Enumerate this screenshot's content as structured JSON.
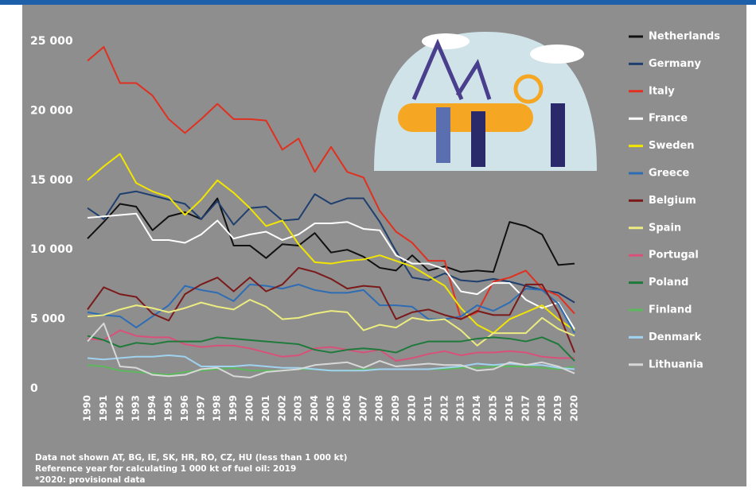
{
  "chart_data": {
    "type": "line",
    "categories": [
      "1990",
      "1991",
      "1992",
      "1993",
      "1994",
      "1995",
      "1996",
      "1997",
      "1998",
      "1999",
      "2000",
      "2001",
      "2002",
      "2003",
      "2004",
      "2005",
      "2006",
      "2007",
      "2008",
      "2009",
      "2010",
      "2011",
      "2012",
      "2013",
      "2014",
      "2015",
      "2016",
      "2017",
      "2018",
      "2019",
      "2020"
    ],
    "ylim": [
      0,
      25000
    ],
    "yticks": [
      0,
      {
        "value": 5000,
        "label": "5 000"
      },
      {
        "value": 10000,
        "label": "10 000"
      },
      {
        "value": 15000,
        "label": "15 000"
      },
      {
        "value": 20000,
        "label": "20 000"
      },
      {
        "value": 25000,
        "label": "25 000"
      }
    ],
    "legend": "right",
    "notes": [
      "Data not shown AT, BG, IE, SK, HR, RO, CZ, HU (less than 1 000 kt)",
      "Reference year for calculating 1 000 kt of fuel oil: 2019",
      "*2020: provisional data"
    ],
    "series": [
      {
        "name": "Netherlands",
        "color": "#111111",
        "values": [
          10800,
          12000,
          13300,
          13100,
          11400,
          12400,
          12700,
          12200,
          13700,
          10300,
          10300,
          9400,
          10400,
          10300,
          11200,
          9800,
          10000,
          9500,
          8700,
          8500,
          9600,
          8500,
          8800,
          8400,
          8500,
          8400,
          12000,
          11700,
          11100,
          8900,
          9000
        ]
      },
      {
        "name": "Germany",
        "color": "#1f3f6e",
        "values": [
          13000,
          12200,
          14000,
          14200,
          13900,
          13600,
          13300,
          12200,
          13500,
          11800,
          13000,
          13100,
          12100,
          12200,
          14000,
          13300,
          13700,
          13700,
          12000,
          9900,
          8000,
          7800,
          8300,
          7800,
          7700,
          7900,
          7700,
          7400,
          7100,
          6900,
          6200
        ]
      },
      {
        "name": "Italy",
        "color": "#e03020",
        "values": [
          23600,
          24600,
          22000,
          22000,
          21100,
          19400,
          18400,
          19400,
          20500,
          19400,
          19400,
          19300,
          17200,
          18000,
          15600,
          17400,
          15600,
          15200,
          12800,
          11300,
          10500,
          9200,
          9200,
          5000,
          5500,
          7700,
          8000,
          8500,
          7200,
          6700,
          5400
        ]
      },
      {
        "name": "France",
        "color": "#ffffff",
        "values": [
          12300,
          12400,
          12500,
          12600,
          10700,
          10700,
          10500,
          11100,
          12100,
          10800,
          11100,
          11300,
          10700,
          11100,
          11900,
          11900,
          12000,
          11500,
          11400,
          9600,
          9000,
          9000,
          8600,
          7000,
          6800,
          7600,
          7600,
          6400,
          5800,
          6200,
          4300
        ]
      },
      {
        "name": "Sweden",
        "color": "#f2e500",
        "values": [
          15000,
          16000,
          16900,
          14800,
          14200,
          13800,
          12500,
          13600,
          15000,
          14100,
          13000,
          11700,
          12100,
          10400,
          9100,
          9000,
          9200,
          9300,
          9600,
          9200,
          8800,
          8100,
          7400,
          5800,
          4600,
          4000,
          5000,
          5500,
          6000,
          5000,
          4200
        ]
      },
      {
        "name": "Greece",
        "color": "#2e6db4",
        "values": [
          5500,
          5300,
          5200,
          4400,
          5200,
          6000,
          7400,
          7100,
          6900,
          6300,
          7500,
          7400,
          7200,
          7500,
          7100,
          6900,
          6900,
          7100,
          6000,
          6000,
          5900,
          5000,
          5000,
          5200,
          6000,
          5600,
          6200,
          7200,
          7100,
          6100,
          4000
        ]
      },
      {
        "name": "Belgium",
        "color": "#7a1a1a",
        "values": [
          5700,
          7300,
          6800,
          6600,
          5400,
          4900,
          6800,
          7500,
          8000,
          7000,
          8000,
          7000,
          7500,
          8700,
          8400,
          7900,
          7200,
          7400,
          7300,
          5000,
          5500,
          5700,
          5300,
          5000,
          5600,
          5300,
          5300,
          7500,
          7500,
          5500,
          2600
        ]
      },
      {
        "name": "Spain",
        "color": "#ecec80",
        "values": [
          5200,
          5300,
          5700,
          6000,
          5800,
          5500,
          5800,
          6200,
          5900,
          5700,
          6400,
          5900,
          5000,
          5100,
          5400,
          5600,
          5500,
          4200,
          4600,
          4400,
          5100,
          4900,
          5000,
          4200,
          3100,
          4000,
          4000,
          4000,
          5100,
          4300,
          3800
        ]
      },
      {
        "name": "Portugal",
        "color": "#d9507a",
        "values": [
          3600,
          3500,
          4200,
          3800,
          3700,
          3700,
          3200,
          3000,
          3100,
          3100,
          2900,
          2600,
          2300,
          2400,
          2900,
          3000,
          2800,
          2600,
          2800,
          2000,
          2200,
          2500,
          2700,
          2400,
          2600,
          2600,
          2700,
          2600,
          2300,
          2200,
          2200
        ]
      },
      {
        "name": "Poland",
        "color": "#1e7a3a",
        "values": [
          3800,
          3500,
          3000,
          3300,
          3200,
          3400,
          3400,
          3400,
          3700,
          3600,
          3500,
          3400,
          3300,
          3200,
          2800,
          2600,
          2800,
          2900,
          2800,
          2600,
          3100,
          3400,
          3400,
          3400,
          3600,
          3700,
          3600,
          3400,
          3700,
          3200,
          2000
        ]
      },
      {
        "name": "Finland",
        "color": "#5cb85c",
        "values": [
          1700,
          1600,
          1300,
          1200,
          1100,
          1000,
          1200,
          1300,
          1400,
          1500,
          1300,
          1300,
          1300,
          1400,
          1400,
          1300,
          1300,
          1400,
          1400,
          1400,
          1400,
          1400,
          1400,
          1500,
          1500,
          1600,
          1600,
          1600,
          1500,
          1400,
          1600
        ]
      },
      {
        "name": "Denmark",
        "color": "#9fd3f0",
        "values": [
          2200,
          2100,
          2200,
          2300,
          2300,
          2400,
          2300,
          1600,
          1600,
          1600,
          1700,
          1600,
          1500,
          1500,
          1400,
          1300,
          1300,
          1300,
          1400,
          1400,
          1400,
          1400,
          1500,
          1600,
          1800,
          1700,
          1800,
          1700,
          1700,
          1500,
          1400
        ]
      },
      {
        "name": "Lithuania",
        "color": "#d8d8d8",
        "values": [
          3400,
          4700,
          1600,
          1500,
          1000,
          900,
          1000,
          1400,
          1500,
          900,
          800,
          1200,
          1300,
          1400,
          1700,
          1800,
          1900,
          1500,
          2000,
          1600,
          1700,
          1800,
          1700,
          1700,
          1300,
          1400,
          1900,
          1700,
          1900,
          1600,
          1100
        ]
      }
    ]
  }
}
